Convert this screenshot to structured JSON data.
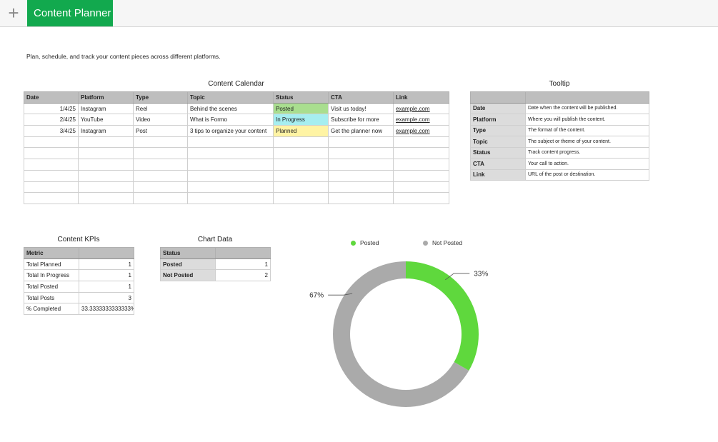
{
  "toolbar": {
    "add_label": "+",
    "sheet_tab": "Content Planner"
  },
  "description": "Plan, schedule, and track your content pieces across different platforms.",
  "calendar": {
    "title": "Content Calendar",
    "headers": [
      "Date",
      "Platform",
      "Type",
      "Topic",
      "Status",
      "CTA",
      "Link"
    ],
    "rows": [
      [
        "1/4/25",
        "Instagram",
        "Reel",
        "Behind the scenes",
        "Posted",
        "Visit us today!",
        "example.com"
      ],
      [
        "2/4/25",
        "YouTube",
        "Video",
        "What is Formo",
        "In Progress",
        "Subscribe for more",
        "example.com"
      ],
      [
        "3/4/25",
        "Instagram",
        "Post",
        "3 tips to organize your content",
        "Planned",
        "Get the planner now",
        "example.com"
      ],
      [
        "",
        "",
        "",
        "",
        "",
        "",
        ""
      ],
      [
        "",
        "",
        "",
        "",
        "",
        "",
        ""
      ],
      [
        "",
        "",
        "",
        "",
        "",
        "",
        ""
      ],
      [
        "",
        "",
        "",
        "",
        "",
        "",
        ""
      ],
      [
        "",
        "",
        "",
        "",
        "",
        "",
        ""
      ],
      [
        "",
        "",
        "",
        "",
        "",
        "",
        ""
      ]
    ]
  },
  "tooltip": {
    "title": "Tooltip",
    "headers": [
      "",
      ""
    ],
    "rows": [
      [
        "Date",
        "Date when the content will be published."
      ],
      [
        "Platform",
        "Where you will publish the content."
      ],
      [
        "Type",
        "The format of the content."
      ],
      [
        "Topic",
        "The subject or theme of your content."
      ],
      [
        "Status",
        "Track content progress."
      ],
      [
        "CTA",
        "Your call to action."
      ],
      [
        "Link",
        "URL of the post or destination."
      ]
    ]
  },
  "kpis": {
    "title": "Content KPIs",
    "headers": [
      "Metric",
      ""
    ],
    "rows": [
      [
        "Total Planned",
        "1"
      ],
      [
        "Total In Progress",
        "1"
      ],
      [
        "Total Posted",
        "1"
      ],
      [
        "Total Posts",
        "3"
      ],
      [
        "% Completed",
        "33.3333333333333%"
      ]
    ]
  },
  "chart_table": {
    "title": "Chart Data",
    "headers": [
      "Status",
      ""
    ],
    "rows": [
      [
        "Posted",
        "1"
      ],
      [
        "Not Posted",
        "2"
      ]
    ]
  },
  "colors": {
    "tab_green": "#12a94e",
    "posted": "#5fd83d",
    "not_posted": "#aaaaaa"
  },
  "chart_data": {
    "type": "pie",
    "labels": [
      "Posted",
      "Not Posted"
    ],
    "values": [
      1,
      2
    ],
    "data_labels": [
      "33%",
      "67%"
    ],
    "colors": [
      "#5fd83d",
      "#aaaaaa"
    ],
    "legend": "top",
    "donut": true
  }
}
